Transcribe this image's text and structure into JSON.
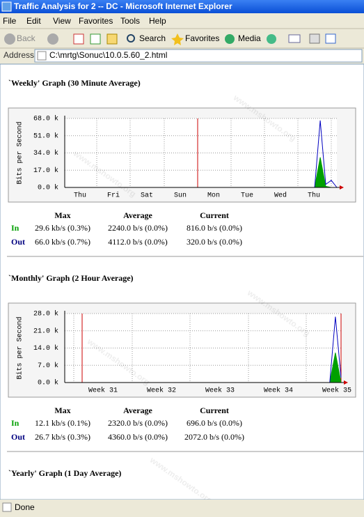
{
  "window": {
    "title": "Traffic Analysis for 2 -- DC - Microsoft Internet Explorer"
  },
  "menu": [
    "File",
    "Edit",
    "View",
    "Favorites",
    "Tools",
    "Help"
  ],
  "toolbar": {
    "back": "Back",
    "search": "Search",
    "favorites": "Favorites",
    "media": "Media"
  },
  "address": {
    "label": "Address",
    "url": "C:\\mrtg\\Sonuc\\10.0.5.60_2.html"
  },
  "watermark": "www.mshowto.org",
  "sections": [
    {
      "title": "`Weekly' Graph (30 Minute Average)",
      "graph": {
        "y_label": "Bits per Second",
        "ylim": [
          0,
          68000
        ],
        "yticks": [
          {
            "value": 0,
            "label": "0.0 k"
          },
          {
            "value": 17000,
            "label": "17.0 k"
          },
          {
            "value": 34000,
            "label": "34.0 k"
          },
          {
            "value": 51000,
            "label": "51.0 k"
          },
          {
            "value": 68000,
            "label": "68.0 k"
          }
        ],
        "categories": [
          "Thu",
          "Fri",
          "Sat",
          "Sun",
          "Mon",
          "Tue",
          "Wed",
          "Thu"
        ],
        "in_color": "#00a000",
        "out_color": "#0000c0",
        "in_values": [
          0,
          0,
          0,
          0,
          0,
          0,
          0,
          0,
          0,
          0,
          0,
          0,
          0,
          0,
          0,
          0,
          0,
          0,
          0,
          0,
          0,
          0,
          0,
          0,
          0,
          0,
          0,
          0,
          0,
          0,
          0,
          0,
          0,
          0,
          0,
          0,
          0,
          0,
          0,
          0,
          0,
          0,
          0,
          0,
          0,
          0,
          29600,
          1000,
          0,
          0
        ],
        "out_values": [
          0,
          0,
          0,
          0,
          0,
          0,
          0,
          0,
          0,
          0,
          0,
          0,
          0,
          0,
          0,
          0,
          0,
          0,
          0,
          0,
          0,
          0,
          0,
          0,
          0,
          0,
          0,
          0,
          0,
          0,
          0,
          0,
          0,
          0,
          0,
          0,
          0,
          0,
          0,
          0,
          0,
          0,
          0,
          0,
          0,
          0,
          66000,
          3000,
          7000,
          0
        ]
      },
      "stats": {
        "headers": [
          "Max",
          "Average",
          "Current"
        ],
        "rows": [
          {
            "label": "In",
            "max": "29.6 kb/s (0.3%)",
            "average": "2240.0 b/s (0.0%)",
            "current": "816.0 b/s (0.0%)"
          },
          {
            "label": "Out",
            "max": "66.0 kb/s (0.7%)",
            "average": "4112.0 b/s (0.0%)",
            "current": "320.0 b/s (0.0%)"
          }
        ]
      }
    },
    {
      "title": "`Monthly' Graph (2 Hour Average)",
      "graph": {
        "y_label": "Bits per Second",
        "ylim": [
          0,
          28000
        ],
        "yticks": [
          {
            "value": 0,
            "label": "0.0 k"
          },
          {
            "value": 7000,
            "label": "7.0 k"
          },
          {
            "value": 14000,
            "label": "14.0 k"
          },
          {
            "value": 21000,
            "label": "21.0 k"
          },
          {
            "value": 28000,
            "label": "28.0 k"
          }
        ],
        "categories": [
          "Week 31",
          "Week 32",
          "Week 33",
          "Week 34",
          "Week 35"
        ],
        "in_color": "#00a000",
        "out_color": "#0000c0",
        "in_values": [
          0,
          0,
          0,
          0,
          0,
          0,
          0,
          0,
          0,
          0,
          0,
          0,
          0,
          0,
          0,
          0,
          0,
          0,
          0,
          0,
          0,
          0,
          0,
          0,
          0,
          0,
          0,
          0,
          0,
          0,
          0,
          0,
          0,
          0,
          0,
          0,
          0,
          0,
          0,
          0,
          0,
          0,
          0,
          0,
          0,
          0,
          0,
          0,
          12100,
          0
        ],
        "out_values": [
          0,
          0,
          0,
          0,
          0,
          0,
          0,
          0,
          0,
          0,
          0,
          0,
          0,
          0,
          0,
          0,
          0,
          0,
          0,
          0,
          0,
          0,
          0,
          0,
          0,
          0,
          0,
          0,
          0,
          0,
          0,
          0,
          0,
          0,
          0,
          0,
          0,
          0,
          0,
          0,
          0,
          0,
          0,
          0,
          0,
          0,
          0,
          0,
          26700,
          2000
        ]
      },
      "stats": {
        "headers": [
          "Max",
          "Average",
          "Current"
        ],
        "rows": [
          {
            "label": "In",
            "max": "12.1 kb/s (0.1%)",
            "average": "2320.0 b/s (0.0%)",
            "current": "696.0 b/s (0.0%)"
          },
          {
            "label": "Out",
            "max": "26.7 kb/s (0.3%)",
            "average": "4360.0 b/s (0.0%)",
            "current": "2072.0 b/s (0.0%)"
          }
        ]
      }
    },
    {
      "title": "`Yearly' Graph (1 Day Average)"
    }
  ],
  "status": "Done"
}
